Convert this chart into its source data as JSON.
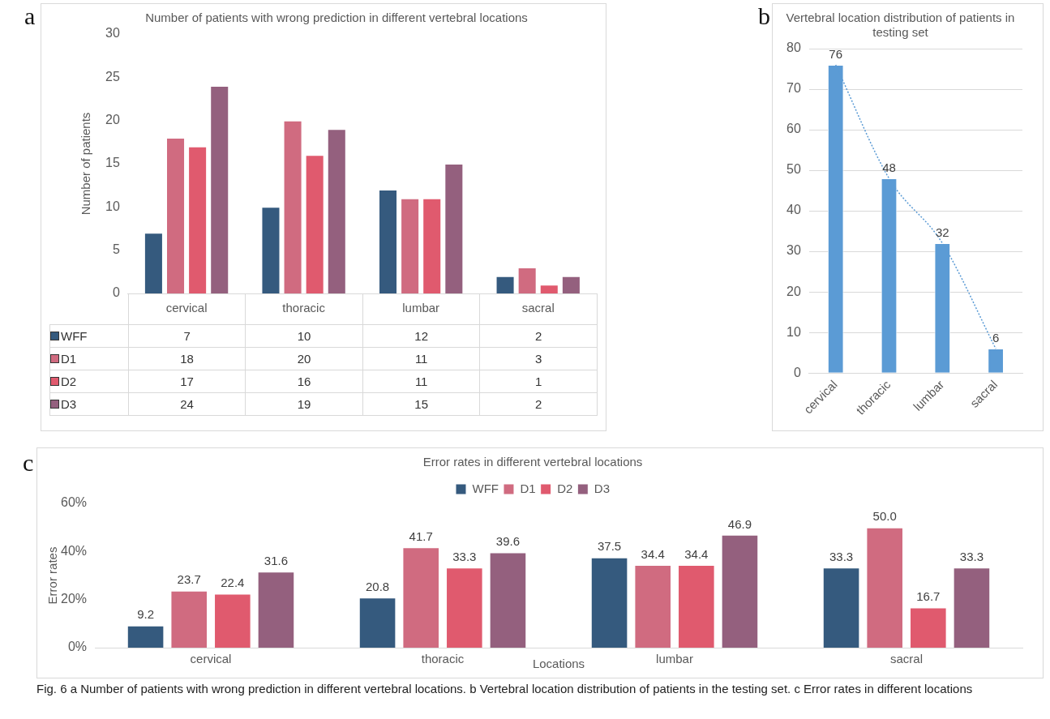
{
  "chart_data": [
    {
      "type": "bar",
      "title": "Number of patients with wrong prediction in different vertebral locations",
      "ylabel": "Number of patients",
      "categories": [
        "cervical",
        "thoracic",
        "lumbar",
        "sacral"
      ],
      "series": [
        {
          "name": "WFF",
          "color": "#355a7e",
          "values": [
            7,
            10,
            12,
            2
          ]
        },
        {
          "name": "D1",
          "color": "#d06b80",
          "values": [
            18,
            20,
            11,
            3
          ]
        },
        {
          "name": "D2",
          "color": "#e05a6e",
          "values": [
            17,
            16,
            11,
            1
          ]
        },
        {
          "name": "D3",
          "color": "#94607e",
          "values": [
            24,
            19,
            15,
            2
          ]
        }
      ],
      "ylim": [
        0,
        30
      ],
      "yticks": [
        0,
        5,
        10,
        15,
        20,
        25,
        30
      ],
      "data_labels": true,
      "legend": "bottom",
      "annotations": [
        "a"
      ]
    },
    {
      "type": "bar",
      "title": "Vertebral location distribution of patients in testing set",
      "categories": [
        "cervical",
        "thoracic",
        "lumbar",
        "sacral"
      ],
      "series": [
        {
          "color": "#5b9bd5",
          "values": [
            76,
            48,
            32,
            6
          ],
          "value_labels": [
            "76",
            "48",
            "32",
            "6"
          ]
        },
        {
          "type": "line",
          "line_style": "dotted",
          "color": "#5b9bd5",
          "x": [
            "cervical",
            "thoracic",
            "lumbar",
            "sacral"
          ],
          "values": [
            76,
            48,
            32,
            6
          ]
        }
      ],
      "ylim": [
        0,
        80
      ],
      "yticks": [
        0,
        10,
        20,
        30,
        40,
        50,
        60,
        70,
        80
      ],
      "grid": "y",
      "annotations": [
        "b"
      ]
    },
    {
      "type": "bar",
      "title": "Error rates in different vertebral locations",
      "xlabel": "Locations",
      "ylabel": "Error rates",
      "categories": [
        "cervical",
        "thoracic",
        "lumbar",
        "sacral"
      ],
      "series": [
        {
          "name": "WFF",
          "color": "#355a7e",
          "values": [
            9.2,
            20.8,
            37.5,
            33.3
          ],
          "value_labels": [
            "9.2",
            "20.8",
            "37.5",
            "33.3"
          ]
        },
        {
          "name": "D1",
          "color": "#d06b80",
          "values": [
            23.7,
            41.7,
            34.4,
            50.0
          ],
          "value_labels": [
            "23.7",
            "41.7",
            "34.4",
            "50.0"
          ]
        },
        {
          "name": "D2",
          "color": "#e05a6e",
          "values": [
            22.4,
            33.3,
            34.4,
            16.7
          ],
          "value_labels": [
            "22.4",
            "33.3",
            "34.4",
            "16.7"
          ]
        },
        {
          "name": "D3",
          "color": "#94607e",
          "values": [
            31.6,
            39.6,
            46.9,
            33.3
          ],
          "value_labels": [
            "31.6",
            "39.6",
            "46.9",
            "33.3"
          ]
        }
      ],
      "ylim": [
        0,
        60
      ],
      "yticks": [
        {
          "value": 0,
          "label": "0%"
        },
        {
          "value": 20,
          "label": "20%"
        },
        {
          "value": 40,
          "label": "40%"
        },
        {
          "value": 60,
          "label": "60%"
        }
      ],
      "legend": "top",
      "annotations": [
        "c",
        "Fig. 6 a Number of patients with wrong prediction in different vertebral locations. b Vertebral location distribution of patients in the testing set. c Error rates in different locations"
      ]
    }
  ]
}
